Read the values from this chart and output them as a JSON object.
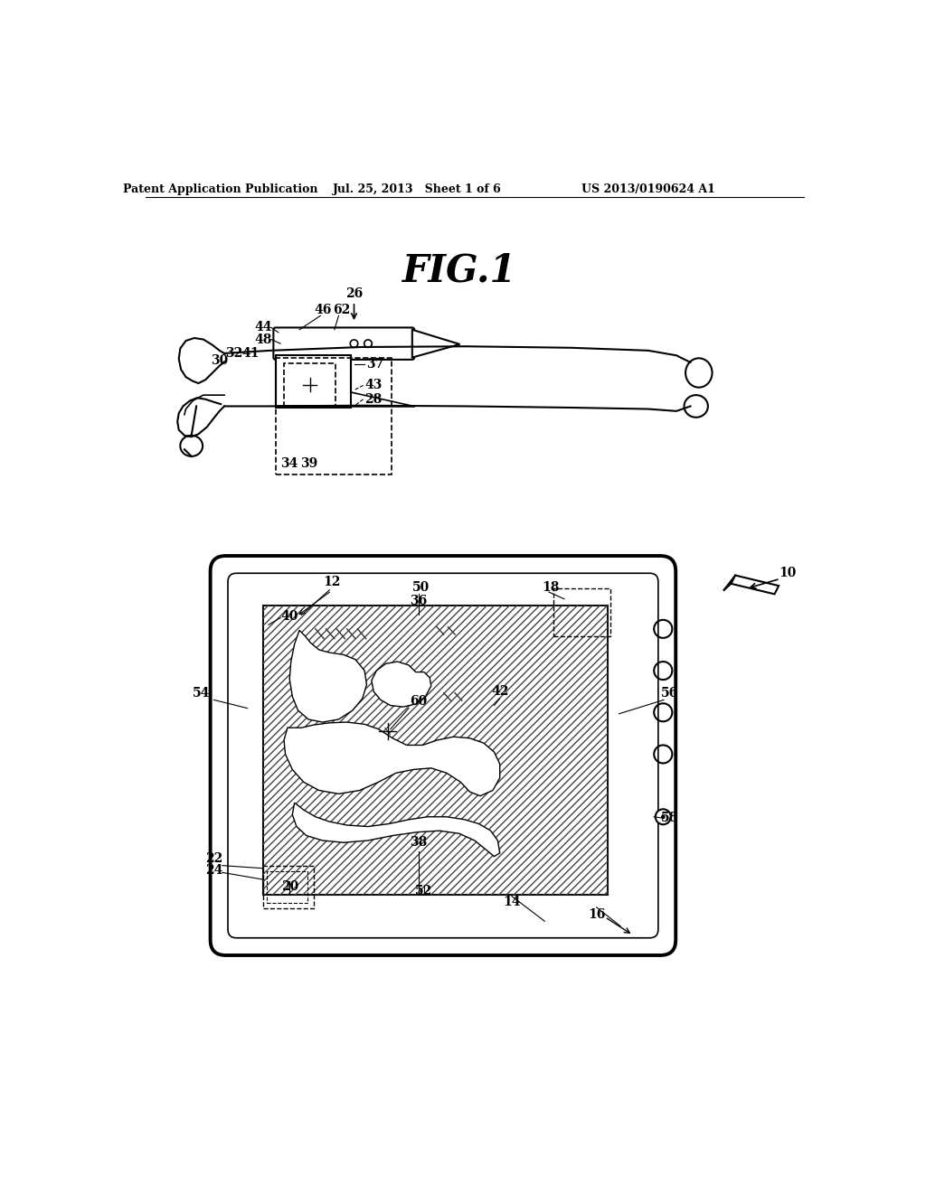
{
  "header_left": "Patent Application Publication",
  "header_mid": "Jul. 25, 2013   Sheet 1 of 6",
  "header_right": "US 2013/0190624 A1",
  "fig_title": "FIG.1",
  "bg_color": "#ffffff",
  "line_color": "#000000"
}
